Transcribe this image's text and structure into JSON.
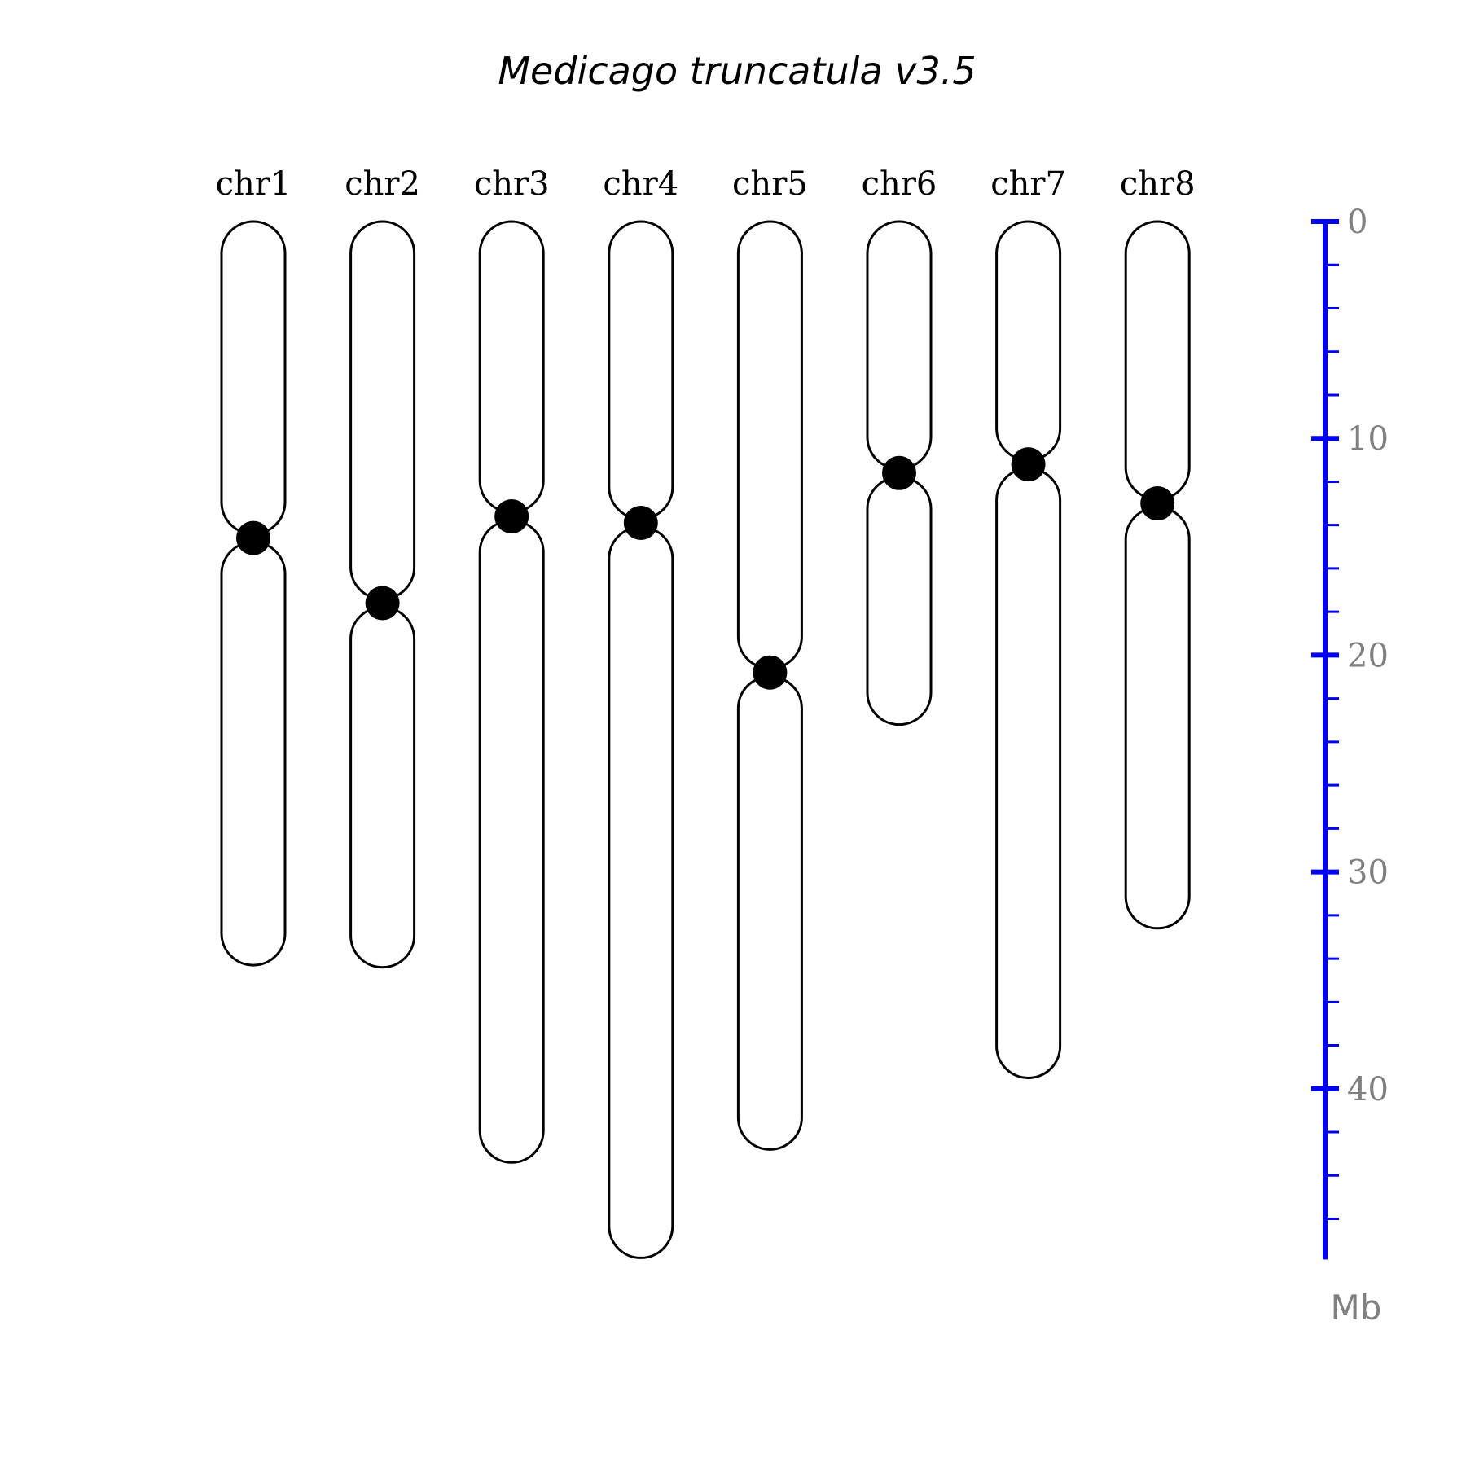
{
  "title": "Medicago truncatula v3.5",
  "colors": {
    "outline": "#000000",
    "centromere": "#000000",
    "scale_axis": "#0000ff",
    "tick_label": "#808080"
  },
  "scale": {
    "unit": "Mb",
    "min": 0,
    "max": 47.8,
    "major_ticks": [
      0,
      10,
      20,
      30,
      40
    ],
    "major_tick_labels": [
      "0",
      "10",
      "20",
      "30",
      "40"
    ],
    "minor_tick_step": 2
  },
  "chart_data": {
    "type": "karyogram",
    "title": "Medicago truncatula v3.5",
    "ylabel": "Mb",
    "ylim": [
      0,
      47.8
    ],
    "chromosomes": [
      {
        "name": "chr1",
        "length": 34.3,
        "centromere": 14.6
      },
      {
        "name": "chr2",
        "length": 34.4,
        "centromere": 17.6
      },
      {
        "name": "chr3",
        "length": 43.4,
        "centromere": 13.6
      },
      {
        "name": "chr4",
        "length": 47.8,
        "centromere": 13.9
      },
      {
        "name": "chr5",
        "length": 42.8,
        "centromere": 20.8
      },
      {
        "name": "chr6",
        "length": 23.2,
        "centromere": 11.6
      },
      {
        "name": "chr7",
        "length": 39.5,
        "centromere": 11.2
      },
      {
        "name": "chr8",
        "length": 32.6,
        "centromere": 13.0
      }
    ]
  }
}
